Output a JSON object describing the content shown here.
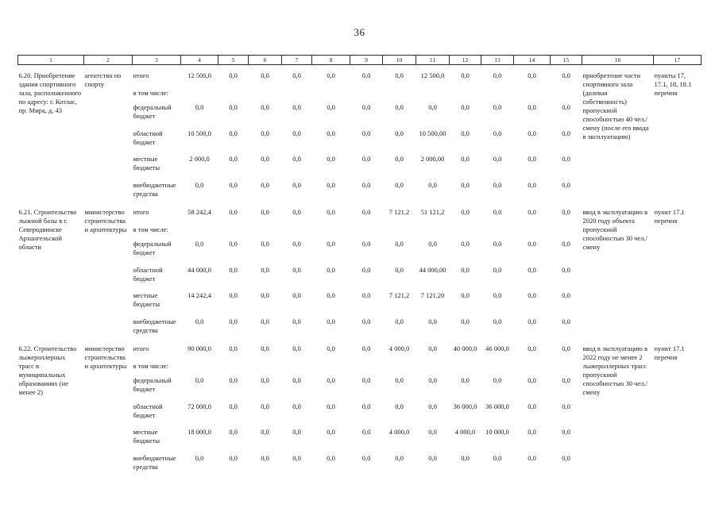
{
  "page": {
    "number": "36"
  },
  "table": {
    "header_columns": [
      "1",
      "2",
      "3",
      "4",
      "5",
      "6",
      "7",
      "8",
      "9",
      "10",
      "11",
      "12",
      "13",
      "14",
      "15",
      "16",
      "17"
    ],
    "budget_line_labels": [
      "итого",
      "в том числе:",
      "федеральный бюджет",
      "областной бюджет",
      "местные бюджеты",
      "внебюджетные средства"
    ],
    "rows": [
      {
        "name": "6.20. Приобретение здания спортивного зала, расположенного по адресу: г. Котлас, пр. Мира, д. 43",
        "executor": "агентство по спорту",
        "amounts": {
          "itogo": [
            "12 500,0",
            "0,0",
            "0,0",
            "0,0",
            "0,0",
            "0,0",
            "0,0",
            "12 500,0",
            "0,0",
            "0,0",
            "0,0",
            "0,0"
          ],
          "federal": [
            "0,0",
            "0,0",
            "0,0",
            "0,0",
            "0,0",
            "0,0",
            "0,0",
            "0,0",
            "0,0",
            "0,0",
            "0,0",
            "0,0"
          ],
          "oblast": [
            "10 500,0",
            "0,0",
            "0,0",
            "0,0",
            "0,0",
            "0,0",
            "0,0",
            "10 500,00",
            "0,0",
            "0,0",
            "0,0",
            "0,0"
          ],
          "local": [
            "2 000,0",
            "0,0",
            "0,0",
            "0,0",
            "0,0",
            "0,0",
            "0,0",
            "2 000,00",
            "0,0",
            "0,0",
            "0,0",
            "0,0"
          ],
          "extra": [
            "0,0",
            "0,0",
            "0,0",
            "0,0",
            "0,0",
            "0,0",
            "0,0",
            "0,0",
            "0,0",
            "0,0",
            "0,0",
            "0,0"
          ]
        },
        "result": "приобретение части спортивного зала (долевая собственность) пропускной способностью 40 чел./смену (после его ввода в эксплуатацию)",
        "reference": "пункты 17, 17.1, 18, 18.1 перечня"
      },
      {
        "name": "6.21. Строительство лыжной базы в г. Северодвинске Архангельской области",
        "executor": "министерство строительства и архитектуры",
        "amounts": {
          "itogo": [
            "58 242,4",
            "0,0",
            "0,0",
            "0,0",
            "0,0",
            "0,0",
            "7 121,2",
            "51 121,2",
            "0,0",
            "0,0",
            "0,0",
            "0,0"
          ],
          "federal": [
            "0,0",
            "0,0",
            "0,0",
            "0,0",
            "0,0",
            "0,0",
            "0,0",
            "0,0",
            "0,0",
            "0,0",
            "0,0",
            "0,0"
          ],
          "oblast": [
            "44 000,0",
            "0,0",
            "0,0",
            "0,0",
            "0,0",
            "0,0",
            "0,0",
            "44 000,00",
            "0,0",
            "0,0",
            "0,0",
            "0,0"
          ],
          "local": [
            "14 242,4",
            "0,0",
            "0,0",
            "0,0",
            "0,0",
            "0,0",
            "7 121,2",
            "7 121,20",
            "0,0",
            "0,0",
            "0,0",
            "0,0"
          ],
          "extra": [
            "0,0",
            "0,0",
            "0,0",
            "0,0",
            "0,0",
            "0,0",
            "0,0",
            "0,0",
            "0,0",
            "0,0",
            "0,0",
            "0,0"
          ]
        },
        "result": "ввод в эксплуатацию в 2020 году объекта пропускной способностью 30 чел./смену",
        "reference": "пункт 17.1 перечня"
      },
      {
        "name": "6.22. Строительство лыжероллерных трасс в муниципальных образованиях (не менее 2)",
        "executor": "министерство строительства и архитектуры",
        "amounts": {
          "itogo": [
            "90 000,0",
            "0,0",
            "0,0",
            "0,0",
            "0,0",
            "0,0",
            "4 000,0",
            "0,0",
            "40 000,0",
            "46 000,0",
            "0,0",
            "0,0"
          ],
          "federal": [
            "0,0",
            "0,0",
            "0,0",
            "0,0",
            "0,0",
            "0,0",
            "0,0",
            "0,0",
            "0,0",
            "0,0",
            "0,0",
            "0,0"
          ],
          "oblast": [
            "72 000,0",
            "0,0",
            "0,0",
            "0,0",
            "0,0",
            "0,0",
            "0,0",
            "0,0",
            "36 000,0",
            "36 000,0",
            "0,0",
            "0,0"
          ],
          "local": [
            "18 000,0",
            "0,0",
            "0,0",
            "0,0",
            "0,0",
            "0,0",
            "4 000,0",
            "0,0",
            "4 000,0",
            "10 000,0",
            "0,0",
            "0,0"
          ],
          "extra": [
            "0,0",
            "0,0",
            "0,0",
            "0,0",
            "0,0",
            "0,0",
            "0,0",
            "0,0",
            "0,0",
            "0,0",
            "0,0",
            "0,0"
          ]
        },
        "result": "ввод в эксплуатацию в 2022 году не менее 2 лыжероллерных трасс пропускной способностью 30 чел./смену",
        "reference": "пункт 17.1 перечня"
      }
    ]
  }
}
